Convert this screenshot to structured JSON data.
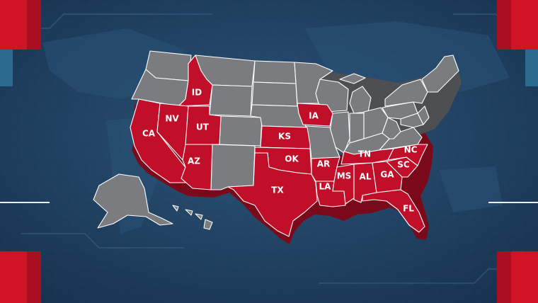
{
  "colors": {
    "background": "#1e3e5e",
    "highlighted_state": "#c10f2a",
    "other_state": "#7b7c80",
    "state_border": "#ffffff",
    "label_text": "#ffffff",
    "frame_accent": "#d11326"
  },
  "map": {
    "type": "us-states-choropleth",
    "highlighted_states": [
      "ID",
      "CA",
      "NV",
      "UT",
      "AZ",
      "IA",
      "KS",
      "OK",
      "TX",
      "AR",
      "LA",
      "MS",
      "AL",
      "GA",
      "TN",
      "SC",
      "NC",
      "FL"
    ],
    "labels": {
      "ID": "ID",
      "CA": "CA",
      "NV": "NV",
      "UT": "UT",
      "AZ": "AZ",
      "IA": "IA",
      "KS": "KS",
      "OK": "OK",
      "TX": "TX",
      "AR": "AR",
      "LA": "LA",
      "MS": "MS",
      "AL": "AL",
      "GA": "GA",
      "TN": "TN",
      "SC": "SC",
      "NC": "NC",
      "FL": "FL"
    }
  }
}
